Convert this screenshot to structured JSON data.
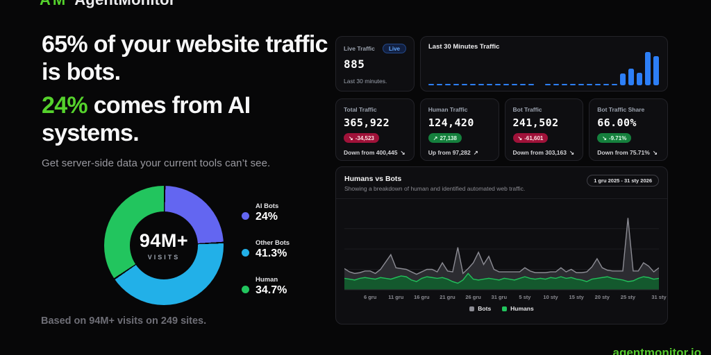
{
  "brand": {
    "logo_mark": "AM",
    "logo_text": "AgentMonitor",
    "footer_link": "agentmonitor.io",
    "accent_green": "#55d22c"
  },
  "hero": {
    "headline_line1": "65% of your website traffic is bots.",
    "headline_highlight": "24%",
    "headline_line2_rest": " comes from AI systems.",
    "subtitle": "Get server-side data your current tools can’t see.",
    "footnote": "Based on 94M+ visits on 249 sites."
  },
  "live_card": {
    "label": "Live Traffic",
    "badge": "Live",
    "value": "885",
    "footer": "Last 30 minutes."
  },
  "stats_cards": [
    {
      "label": "Total Traffic",
      "value": "365,922",
      "delta": "-34,523",
      "delta_dir": "down",
      "delta_color": "red",
      "footer": "Down from 400,445"
    },
    {
      "label": "Human Traffic",
      "value": "124,420",
      "delta": "27,138",
      "delta_dir": "up",
      "delta_color": "green",
      "footer": "Up from 97,282"
    },
    {
      "label": "Bot Traffic",
      "value": "241,502",
      "delta": "-61,601",
      "delta_dir": "down",
      "delta_color": "red",
      "footer": "Down from 303,163"
    },
    {
      "label": "Bot Traffic Share",
      "value": "66.00%",
      "delta": "-9.71%",
      "delta_dir": "down",
      "delta_color": "green",
      "footer": "Down from 75.71%"
    }
  ],
  "chart_data": [
    {
      "id": "visits-breakdown-donut",
      "type": "pie",
      "donut": true,
      "center_value": "94M+",
      "center_label": "VISITS",
      "start_angle_deg": 0,
      "slices": [
        {
          "label": "AI Bots",
          "value_pct": 24,
          "display": "24%",
          "color": "#6366f1"
        },
        {
          "label": "Other Bots",
          "value_pct": 41.3,
          "display": "41.3%",
          "color": "#22b0e8"
        },
        {
          "label": "Human",
          "value_pct": 34.7,
          "display": "34.7%",
          "color": "#22c55e"
        }
      ],
      "legend_position": "right"
    },
    {
      "id": "last-30-minutes-traffic",
      "type": "bar",
      "title": "Last 30 Minutes Traffic",
      "color": "#2d7ff7",
      "ylim": [
        0,
        100
      ],
      "values": [
        4,
        4,
        4,
        4,
        4,
        4,
        4,
        4,
        4,
        4,
        4,
        4,
        4,
        0,
        4,
        4,
        4,
        4,
        4,
        4,
        4,
        4,
        4,
        36,
        50,
        38,
        100,
        88
      ]
    },
    {
      "id": "humans-vs-bots",
      "type": "area",
      "stacked": true,
      "title": "Humans vs Bots",
      "subtitle": "Showing a breakdown of human and identified automated web traffic.",
      "date_range": "1 gru 2025 - 31 sty 2026",
      "grid": "horizontal-faint",
      "ylim": [
        0,
        100
      ],
      "x_tick_labels": [
        "6 gru",
        "11 gru",
        "16 gru",
        "21 gru",
        "26 gru",
        "31 gru",
        "5 sty",
        "10 sty",
        "15 sty",
        "20 sty",
        "25 sty",
        "31 sty"
      ],
      "x_tick_day_index": [
        5,
        10,
        15,
        20,
        25,
        30,
        35,
        40,
        45,
        50,
        55,
        61
      ],
      "days_total": 62,
      "series": [
        {
          "name": "Humans",
          "color_fill": "#14592e",
          "color_line": "#22c05a",
          "values": [
            14,
            13,
            12,
            14,
            15,
            14,
            13,
            15,
            14,
            13,
            15,
            17,
            16,
            12,
            10,
            14,
            16,
            15,
            14,
            15,
            13,
            10,
            8,
            12,
            20,
            13,
            12,
            13,
            14,
            13,
            12,
            14,
            13,
            12,
            14,
            16,
            14,
            13,
            14,
            13,
            15,
            14,
            16,
            14,
            15,
            13,
            12,
            10,
            13,
            14,
            15,
            16,
            14,
            13,
            12,
            10,
            11,
            14,
            16,
            15,
            13,
            14
          ]
        },
        {
          "name": "Bots",
          "color_fill": "#2c2c31",
          "color_line": "#8c8c94",
          "values": [
            12,
            9,
            8,
            7,
            8,
            9,
            7,
            10,
            20,
            30,
            12,
            9,
            9,
            10,
            9,
            8,
            9,
            10,
            8,
            18,
            10,
            12,
            44,
            8,
            6,
            20,
            34,
            18,
            27,
            12,
            10,
            8,
            9,
            10,
            8,
            11,
            9,
            8,
            7,
            8,
            7,
            8,
            11,
            8,
            10,
            8,
            9,
            12,
            15,
            24,
            12,
            8,
            9,
            10,
            11,
            78,
            12,
            9,
            17,
            14,
            9,
            13
          ]
        }
      ],
      "legend": [
        "Bots",
        "Humans"
      ],
      "legend_colors": [
        "#8e8e96",
        "#22c55e"
      ],
      "legend_position": "bottom"
    }
  ]
}
